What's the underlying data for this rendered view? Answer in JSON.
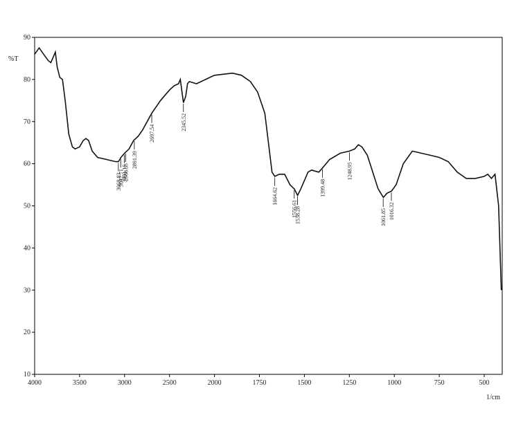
{
  "chart_data": {
    "type": "line",
    "ylabel": "%T",
    "xlabel": "1/cm",
    "xlim": [
      4000,
      400
    ],
    "ylim": [
      10,
      90
    ],
    "xticks": [
      4000,
      3500,
      3000,
      2500,
      2000,
      1750,
      1500,
      1250,
      1000,
      750,
      500
    ],
    "yticks": [
      10,
      20,
      30,
      40,
      50,
      60,
      70,
      80,
      90
    ],
    "color": "#111111",
    "x": [
      4000,
      3950,
      3900,
      3850,
      3820,
      3790,
      3770,
      3750,
      3720,
      3690,
      3660,
      3620,
      3580,
      3550,
      3500,
      3460,
      3430,
      3400,
      3360,
      3300,
      3200,
      3100,
      3068,
      3040,
      3000,
      2950,
      2900,
      2850,
      2800,
      2697,
      2600,
      2500,
      2450,
      2400,
      2380,
      2345,
      2320,
      2300,
      2280,
      2200,
      2100,
      2000,
      1900,
      1850,
      1800,
      1760,
      1720,
      1700,
      1680,
      1664,
      1640,
      1610,
      1580,
      1556,
      1538,
      1520,
      1480,
      1460,
      1420,
      1399,
      1360,
      1300,
      1250,
      1220,
      1200,
      1180,
      1150,
      1120,
      1090,
      1061,
      1040,
      1016,
      990,
      950,
      900,
      850,
      800,
      750,
      700,
      650,
      600,
      550,
      500,
      480,
      460,
      440,
      420,
      405
    ],
    "values": [
      86,
      87.5,
      86,
      84.5,
      84,
      85.5,
      86.5,
      83,
      80.5,
      80,
      75,
      67,
      64,
      63.5,
      64,
      65.5,
      66,
      65.5,
      63,
      61.5,
      61,
      60.5,
      60.5,
      61.5,
      62.5,
      63.5,
      65.5,
      66.5,
      68,
      72,
      75,
      77.5,
      78.5,
      79,
      80,
      74.5,
      76,
      79,
      79.5,
      79,
      80,
      81,
      81.5,
      81,
      79.5,
      77,
      72,
      65,
      58,
      57,
      57.5,
      57.5,
      55,
      54,
      52.5,
      54,
      58,
      58.5,
      58,
      59,
      61,
      62.5,
      63,
      63.5,
      64.5,
      64,
      62,
      58,
      54,
      52,
      53,
      53.5,
      55,
      60,
      63,
      62.5,
      62,
      61.5,
      60.5,
      58,
      56.5,
      56.5,
      57,
      57.5,
      56.5,
      57.5,
      50,
      30
    ],
    "peaks": [
      3068.83,
      3042.71,
      3001.15,
      2988.35,
      2891.39,
      2697.54,
      2345.52,
      1664.62,
      1556.61,
      1538.28,
      1399.48,
      1248.95,
      1061.85,
      1016.32
    ]
  }
}
